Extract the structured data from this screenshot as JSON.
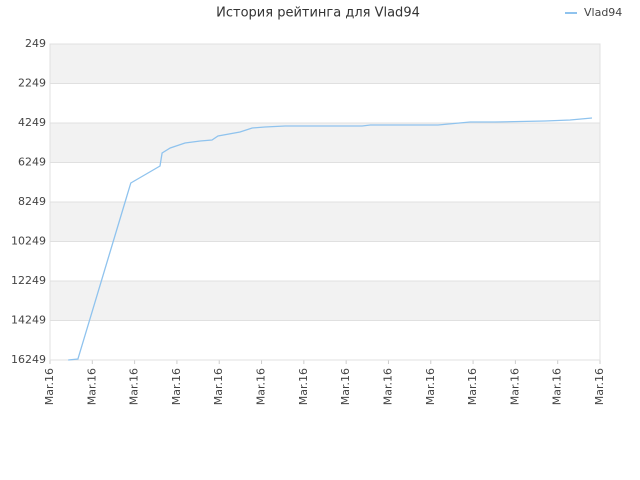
{
  "chart_data": {
    "type": "line",
    "title": "История рейтинга для Vlad94",
    "x": [
      0.43,
      0.66,
      1.91,
      2.6,
      2.65,
      2.84,
      3.19,
      3.55,
      3.83,
      3.97,
      4.49,
      4.78,
      5.08,
      5.56,
      7.38,
      7.57,
      9.17,
      9.93,
      10.52,
      11.7,
      12.29,
      12.81
    ],
    "series": [
      {
        "name": "Vlad94",
        "color": "#8fc3ee",
        "values": [
          16249,
          16200,
          7287,
          6426,
          5768,
          5515,
          5261,
          5160,
          5109,
          4907,
          4704,
          4502,
          4452,
          4401,
          4401,
          4350,
          4350,
          4198,
          4198,
          4148,
          4097,
          3996
        ]
      }
    ],
    "xlim": [
      0,
      13
    ],
    "xticks": [
      {
        "value": 0,
        "label": "Mar.16"
      },
      {
        "value": 1,
        "label": "Mar.16"
      },
      {
        "value": 2,
        "label": "Mar.16"
      },
      {
        "value": 3,
        "label": "Mar.16"
      },
      {
        "value": 4,
        "label": "Mar.16"
      },
      {
        "value": 5,
        "label": "Mar.16"
      },
      {
        "value": 6,
        "label": "Mar.16"
      },
      {
        "value": 7,
        "label": "Mar.16"
      },
      {
        "value": 8,
        "label": "Mar.16"
      },
      {
        "value": 9,
        "label": "Mar.16"
      },
      {
        "value": 10,
        "label": "Mar.16"
      },
      {
        "value": 11,
        "label": "Mar.16"
      },
      {
        "value": 12,
        "label": "Mar.16"
      },
      {
        "value": 13,
        "label": "Mar.16"
      }
    ],
    "ylim": [
      249,
      16249
    ],
    "y_inverted": true,
    "yticks": [
      249,
      2249,
      4249,
      6249,
      8249,
      10249,
      12249,
      14249,
      16249
    ],
    "grid": true,
    "legend": "top-right"
  }
}
